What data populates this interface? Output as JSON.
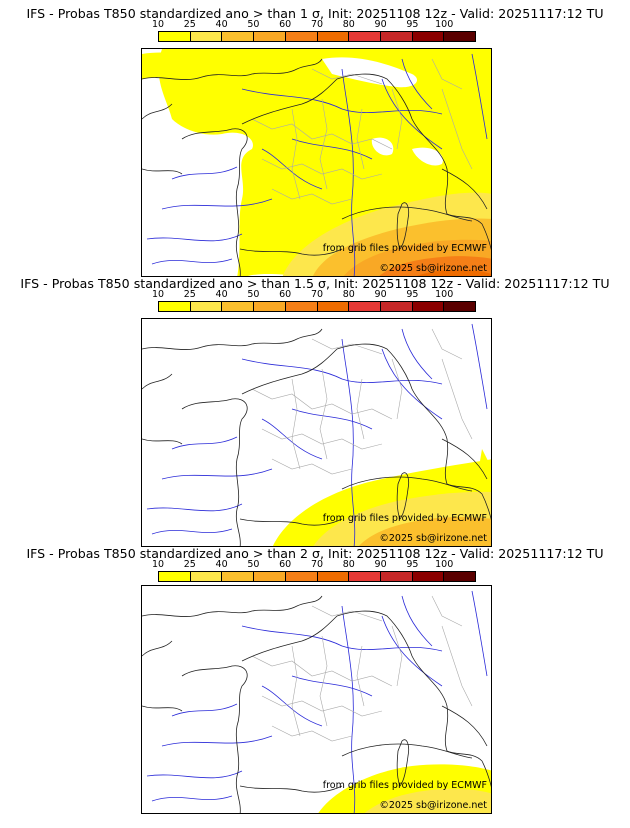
{
  "colorbar": {
    "ticks": [
      "10",
      "25",
      "40",
      "50",
      "60",
      "70",
      "80",
      "90",
      "95",
      "100"
    ],
    "colors": [
      "#ffff00",
      "#fde74c",
      "#fbc02d",
      "#f9a825",
      "#f57f17",
      "#ef6c00",
      "#e53935",
      "#c62828",
      "#8b0000",
      "#5a0000"
    ]
  },
  "panels": [
    {
      "title": "IFS - Probas T850  standardized ano > than 1 σ, Init: 20251108 12z - Valid: 20251117:12 TU",
      "credit": "from grib files provided by ECMWF",
      "copyright": "©2025 sb@irizone.net"
    },
    {
      "title": "IFS - Probas T850  standardized ano > than 1.5 σ, Init: 20251108 12z - Valid: 20251117:12 TU",
      "credit": "from grib files provided by ECMWF",
      "copyright": "©2025 sb@irizone.net"
    },
    {
      "title": "IFS - Probas T850  standardized ano > than 2 σ, Init: 20251108 12z - Valid: 20251117:12 TU",
      "credit": "from grib files provided by ECMWF",
      "copyright": "©2025 sb@irizone.net"
    }
  ]
}
